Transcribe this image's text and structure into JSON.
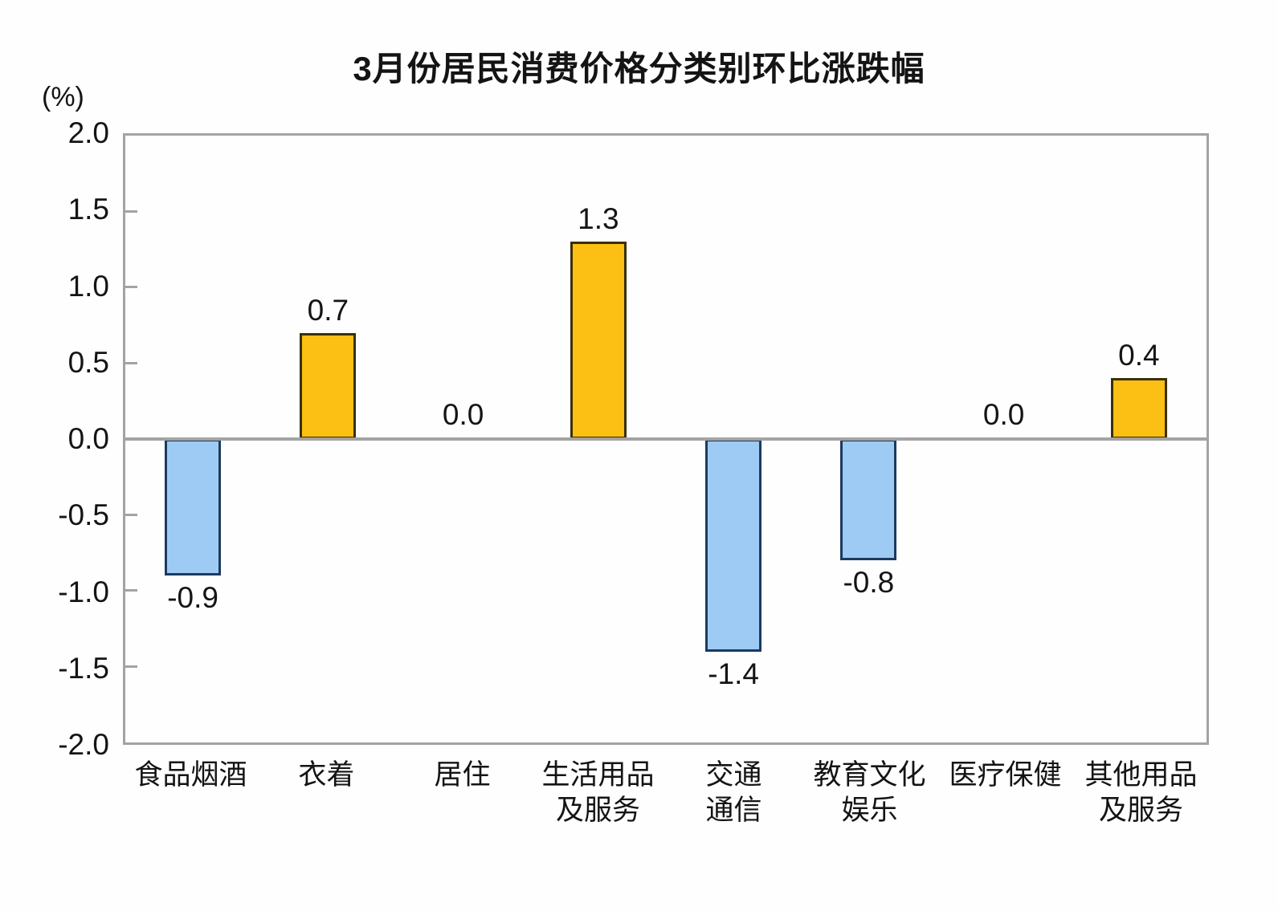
{
  "title": "3月份居民消费价格分类别环比涨跌幅",
  "y_axis_unit": "(%)",
  "chart_data": {
    "type": "bar",
    "title": "3月份居民消费价格分类别环比涨跌幅",
    "ylabel": "(%)",
    "xlabel": "",
    "ylim": [
      -2.0,
      2.0
    ],
    "ytick_step": 0.5,
    "yticks": [
      2.0,
      1.5,
      1.0,
      0.5,
      0.0,
      -0.5,
      -1.0,
      -1.5,
      -2.0
    ],
    "ytick_labels": [
      "2.0",
      "1.5",
      "1.0",
      "0.5",
      "0.0",
      "-0.5",
      "-1.0",
      "-1.5",
      "-2.0"
    ],
    "categories": [
      "食品烟酒",
      "衣着",
      "居住",
      "生活用品及服务",
      "交通通信",
      "教育文化娱乐",
      "医疗保健",
      "其他用品及服务"
    ],
    "category_lines": [
      [
        "食品烟酒"
      ],
      [
        "衣着"
      ],
      [
        "居住"
      ],
      [
        "生活用品",
        "及服务"
      ],
      [
        "交通",
        "通信"
      ],
      [
        "教育文化",
        "娱乐"
      ],
      [
        "医疗保健"
      ],
      [
        "其他用品",
        "及服务"
      ]
    ],
    "values": [
      -0.9,
      0.7,
      0.0,
      1.3,
      -1.4,
      -0.8,
      0.0,
      0.4
    ],
    "value_labels": [
      "-0.9",
      "0.7",
      "0.0",
      "1.3",
      "-1.4",
      "-0.8",
      "0.0",
      "0.4"
    ],
    "grid": false,
    "legend": false,
    "colors": {
      "positive_fill": "#FBC013",
      "positive_border": "#39300A",
      "negative_fill": "#9DCBF4",
      "negative_border": "#1C3A5E",
      "axis_frame": "#A3A3A3",
      "zero_line": "#A3A3A3",
      "text": "#141414"
    }
  }
}
